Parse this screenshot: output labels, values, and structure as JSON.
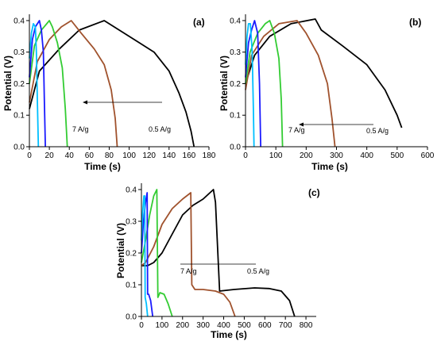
{
  "chart_data": [
    {
      "type": "line",
      "panel_label": "(a)",
      "xlabel": "Time (s)",
      "ylabel": "Potential (V)",
      "xlim": [
        0,
        180
      ],
      "ylim": [
        0,
        0.42
      ],
      "xticks": [
        "0",
        "20",
        "40",
        "60",
        "80",
        "100",
        "120",
        "140",
        "160",
        "180"
      ],
      "yticks": [
        "0.0",
        "0.1",
        "0.2",
        "0.3",
        "0.4"
      ],
      "annotations": {
        "left": "7 A/g",
        "right": "0.5 A/g"
      },
      "series": [
        {
          "color": "#000000",
          "x": [
            0,
            10,
            30,
            50,
            75,
            90,
            110,
            125,
            140,
            150,
            157,
            162,
            165
          ],
          "y": [
            0.12,
            0.24,
            0.31,
            0.37,
            0.4,
            0.37,
            0.33,
            0.3,
            0.24,
            0.17,
            0.11,
            0.05,
            0
          ]
        },
        {
          "color": "#a0522d",
          "x": [
            0,
            8,
            20,
            32,
            42,
            52,
            65,
            75,
            82,
            86,
            88
          ],
          "y": [
            0.14,
            0.27,
            0.34,
            0.38,
            0.4,
            0.36,
            0.31,
            0.26,
            0.18,
            0.09,
            0
          ]
        },
        {
          "color": "#33cc33",
          "x": [
            0,
            5,
            12,
            20,
            23,
            28,
            33,
            36,
            38
          ],
          "y": [
            0.2,
            0.32,
            0.37,
            0.4,
            0.38,
            0.33,
            0.25,
            0.12,
            0
          ]
        },
        {
          "color": "#1a1aff",
          "x": [
            0,
            3,
            6,
            10,
            12,
            14,
            15,
            16
          ],
          "y": [
            0.22,
            0.34,
            0.38,
            0.4,
            0.37,
            0.3,
            0.15,
            0
          ]
        },
        {
          "color": "#00bfff",
          "x": [
            0,
            2,
            4,
            6,
            7,
            8,
            9
          ],
          "y": [
            0.28,
            0.36,
            0.39,
            0.38,
            0.3,
            0.15,
            0
          ]
        }
      ]
    },
    {
      "type": "line",
      "panel_label": "(b)",
      "xlabel": "Time (s)",
      "ylabel": "Potential (V)",
      "xlim": [
        0,
        600
      ],
      "ylim": [
        0,
        0.42
      ],
      "xticks": [
        "0",
        "100",
        "200",
        "300",
        "400",
        "500",
        "600"
      ],
      "yticks": [
        "0.0",
        "0.1",
        "0.2",
        "0.3",
        "0.4"
      ],
      "annotations": {
        "left": "7 A/g",
        "right": "0.5 A/g"
      },
      "series": [
        {
          "color": "#000000",
          "x": [
            0,
            30,
            80,
            150,
            230,
            250,
            320,
            400,
            460,
            500,
            515
          ],
          "y": [
            0.2,
            0.29,
            0.35,
            0.39,
            0.405,
            0.37,
            0.32,
            0.26,
            0.18,
            0.1,
            0.06
          ]
        },
        {
          "color": "#a0522d",
          "x": [
            0,
            20,
            60,
            110,
            170,
            200,
            240,
            270,
            285,
            295
          ],
          "y": [
            0.18,
            0.29,
            0.35,
            0.39,
            0.4,
            0.36,
            0.29,
            0.2,
            0.09,
            0
          ]
        },
        {
          "color": "#33cc33",
          "x": [
            0,
            15,
            40,
            65,
            80,
            95,
            110,
            118,
            122
          ],
          "y": [
            0.2,
            0.3,
            0.36,
            0.39,
            0.4,
            0.36,
            0.28,
            0.15,
            0
          ]
        },
        {
          "color": "#1a1aff",
          "x": [
            0,
            10,
            20,
            30,
            40,
            46,
            50
          ],
          "y": [
            0.22,
            0.33,
            0.37,
            0.4,
            0.36,
            0.2,
            0
          ]
        },
        {
          "color": "#00bfff",
          "x": [
            0,
            5,
            10,
            16,
            22,
            26,
            28
          ],
          "y": [
            0.26,
            0.35,
            0.39,
            0.39,
            0.3,
            0.12,
            0
          ]
        }
      ]
    },
    {
      "type": "line",
      "panel_label": "(c)",
      "xlabel": "Time (s)",
      "ylabel": "Potential (V)",
      "xlim": [
        0,
        850
      ],
      "ylim": [
        0,
        0.42
      ],
      "xticks": [
        "0",
        "100",
        "200",
        "300",
        "400",
        "500",
        "600",
        "700",
        "800"
      ],
      "yticks": [
        "0.0",
        "0.1",
        "0.2",
        "0.3",
        "0.4"
      ],
      "annotations": {
        "left": "7 A/g",
        "right": "0.5 A/g"
      },
      "series": [
        {
          "color": "#000000",
          "x": [
            0,
            30,
            60,
            100,
            150,
            200,
            250,
            300,
            350,
            360,
            380,
            450,
            550,
            620,
            680,
            720,
            745
          ],
          "y": [
            0.16,
            0.16,
            0.17,
            0.2,
            0.26,
            0.32,
            0.35,
            0.37,
            0.4,
            0.36,
            0.08,
            0.085,
            0.09,
            0.088,
            0.08,
            0.05,
            0
          ]
        },
        {
          "color": "#a0522d",
          "x": [
            0,
            20,
            60,
            100,
            150,
            200,
            240,
            245,
            260,
            300,
            360,
            400,
            430,
            455
          ],
          "y": [
            0.16,
            0.17,
            0.22,
            0.29,
            0.34,
            0.37,
            0.39,
            0.1,
            0.085,
            0.085,
            0.08,
            0.07,
            0.045,
            0
          ]
        },
        {
          "color": "#33cc33",
          "x": [
            0,
            20,
            40,
            60,
            75,
            80,
            90,
            110,
            130,
            150
          ],
          "y": [
            0.17,
            0.24,
            0.32,
            0.38,
            0.4,
            0.06,
            0.075,
            0.07,
            0.04,
            0
          ]
        },
        {
          "color": "#1a1aff",
          "x": [
            0,
            10,
            20,
            28,
            30,
            35,
            45,
            55
          ],
          "y": [
            0.2,
            0.3,
            0.36,
            0.39,
            0.07,
            0.07,
            0.05,
            0
          ]
        },
        {
          "color": "#00bfff",
          "x": [
            0,
            6,
            12,
            16,
            18,
            24,
            30
          ],
          "y": [
            0.24,
            0.33,
            0.38,
            0.38,
            0.06,
            0.04,
            0
          ]
        }
      ]
    }
  ]
}
